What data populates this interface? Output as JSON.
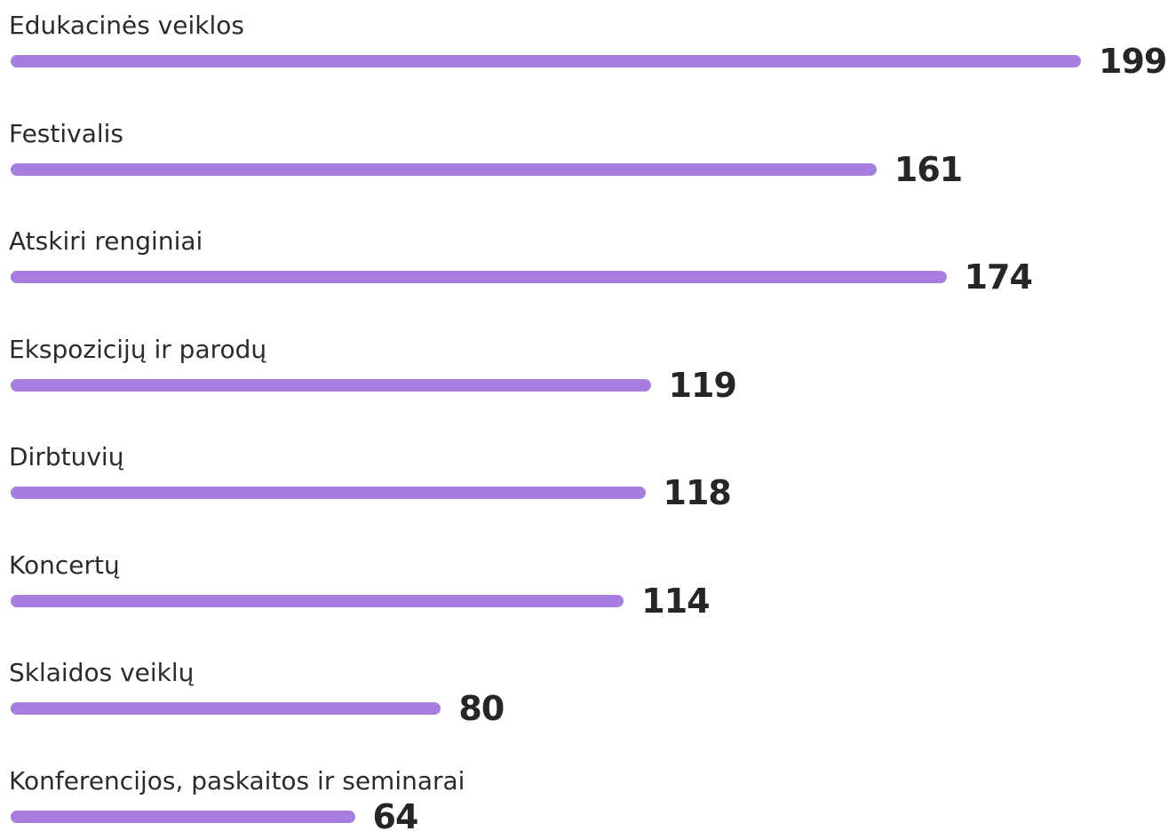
{
  "chart_data": {
    "type": "bar",
    "orientation": "horizontal",
    "categories": [
      "Edukacinės veiklos",
      "Festivalis",
      "Atskiri renginiai",
      "Ekspozicijų ir parodų",
      "Dirbtuvių",
      "Koncertų",
      "Sklaidos veiklų",
      "Konferencijos, paskaitos ir seminarai"
    ],
    "values": [
      199,
      161,
      174,
      119,
      118,
      114,
      80,
      64
    ],
    "value_labels": [
      "199",
      "161",
      "174",
      "119",
      "118",
      "114",
      "80",
      "64"
    ],
    "title": "",
    "xlabel": "",
    "ylabel": "",
    "xlim": [
      0,
      199
    ],
    "grid": false,
    "legend": "none",
    "bar_color": "#a87de0"
  }
}
